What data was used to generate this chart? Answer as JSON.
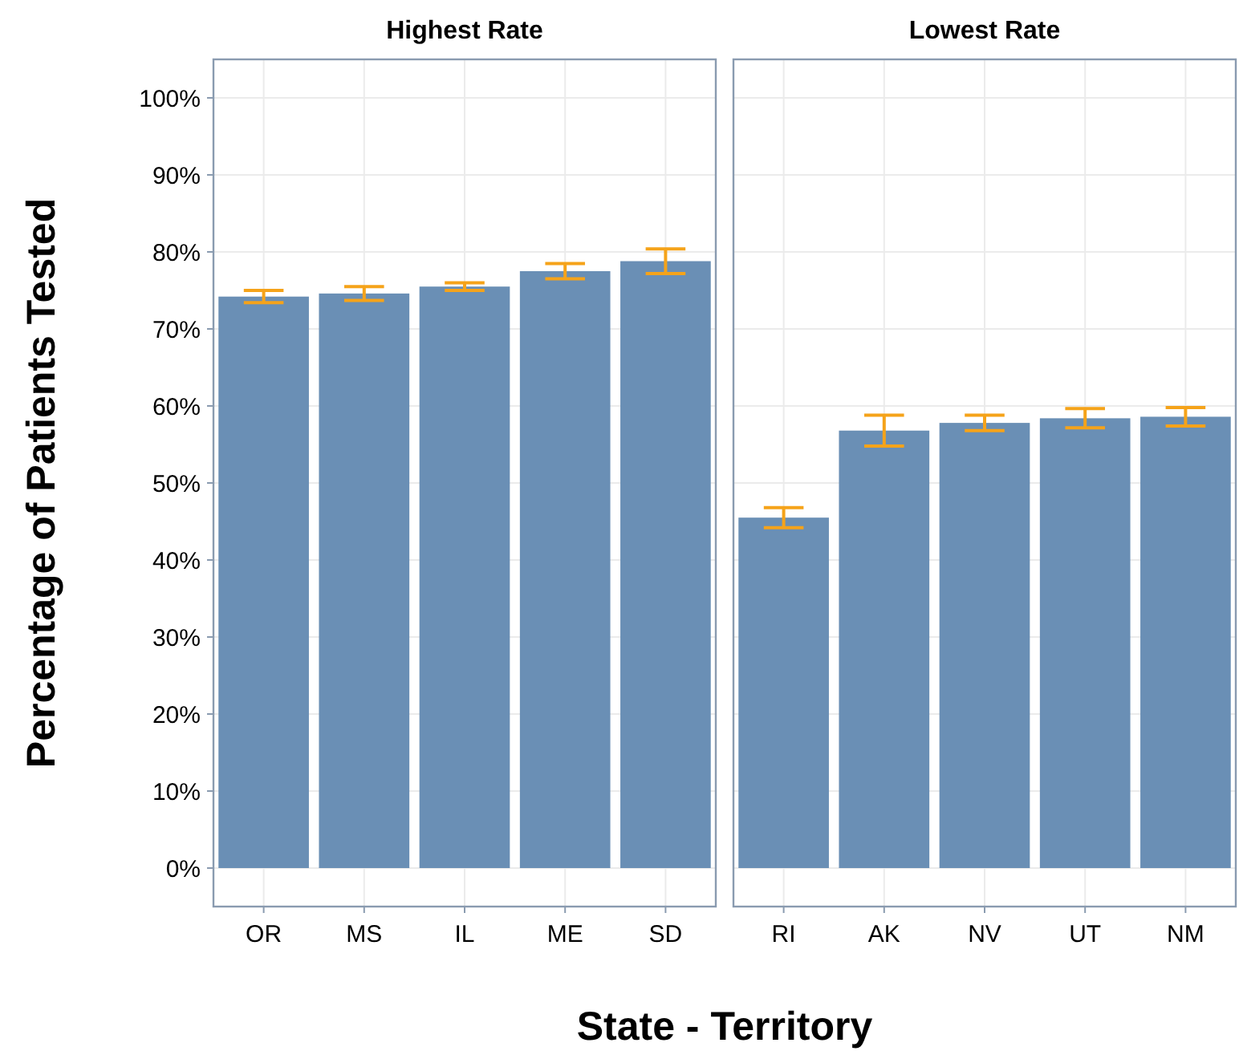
{
  "chart_data": [
    {
      "type": "bar",
      "title": "Highest Rate",
      "ylabel": "Percentage of Patients Tested",
      "xlabel": "State - Territory",
      "categories": [
        "OR",
        "MS",
        "IL",
        "ME",
        "SD"
      ],
      "series": [
        {
          "color": "#6a8fb5",
          "values": [
            74.2,
            74.6,
            75.5,
            77.5,
            78.8
          ],
          "errors": [
            0.8,
            0.9,
            0.5,
            1.0,
            1.6
          ]
        }
      ],
      "ylim": [
        -5,
        105
      ],
      "yticks": [
        {
          "value": 0,
          "label": "0%"
        },
        {
          "value": 10,
          "label": "10%"
        },
        {
          "value": 20,
          "label": "20%"
        },
        {
          "value": 30,
          "label": "30%"
        },
        {
          "value": 40,
          "label": "40%"
        },
        {
          "value": 50,
          "label": "50%"
        },
        {
          "value": 60,
          "label": "60%"
        },
        {
          "value": 70,
          "label": "70%"
        },
        {
          "value": 80,
          "label": "80%"
        },
        {
          "value": 90,
          "label": "90%"
        },
        {
          "value": 100,
          "label": "100%"
        }
      ],
      "grid": true
    },
    {
      "type": "bar",
      "title": "Lowest Rate",
      "categories": [
        "RI",
        "AK",
        "NV",
        "UT",
        "NM"
      ],
      "series": [
        {
          "color": "#6a8fb5",
          "values": [
            45.5,
            56.8,
            57.8,
            58.4,
            58.6
          ],
          "errors": [
            1.3,
            2.0,
            1.0,
            1.25,
            1.2
          ]
        }
      ],
      "ylim": [
        -5,
        105
      ],
      "yticks": [
        0,
        10,
        20,
        30,
        40,
        50,
        60,
        70,
        80,
        90,
        100
      ],
      "grid": true,
      "tick_labels": "x"
    }
  ]
}
